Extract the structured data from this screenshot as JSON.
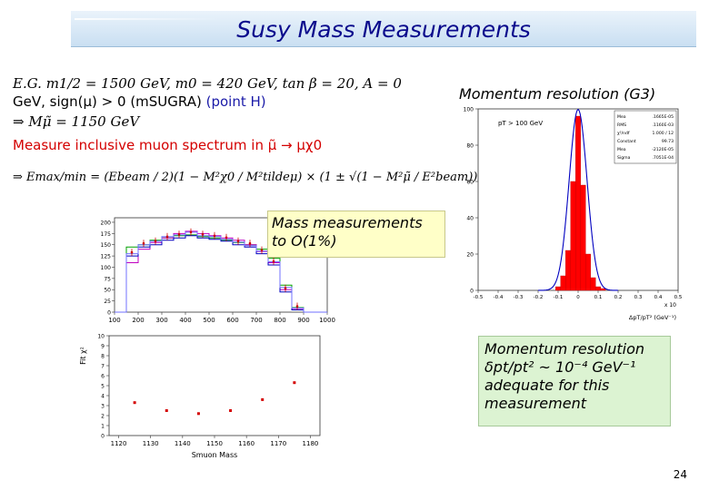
{
  "title": "Susy Mass Measurements",
  "physics_text": {
    "line1": "E.G. m1/2 = 1500 GeV, m0 = 420 GeV, tan β = 20, A = 0",
    "line2_a": "GeV, sign(μ) > 0 (mSUGRA) ",
    "line2_b": "(point H)",
    "line3": "⇒ Mμ̃ = 1150 GeV",
    "line4": "Measure inclusive muon spectrum in μ̃ → μχ0",
    "line5": "⇒ Emax/min = (Ebeam / 2)(1 − M²χ0 / M²tildeμ) × (1 ± √(1 − M²μ̃ / E²beam))"
  },
  "mass_box": {
    "line1": "Mass measurements",
    "line2": "to O(1%)"
  },
  "momentum_label": "Momentum resolution (G3)",
  "resolution_box": {
    "line1": "Momentum resolution",
    "line2": "δpt/pt² ~ 10⁻⁴ GeV⁻¹",
    "line3": "adequate for this",
    "line4": "measurement"
  },
  "page_number": "24",
  "chart_data": [
    {
      "type": "line",
      "name": "muon-spectrum",
      "x_ticks": [
        "100",
        "200",
        "300",
        "400",
        "500",
        "600",
        "700",
        "800",
        "900",
        "1000"
      ],
      "y_ticks": [
        "0",
        "25",
        "50",
        "75",
        "100",
        "125",
        "150",
        "175",
        "200"
      ],
      "xlim": [
        100,
        1000
      ],
      "ylim": [
        0,
        210
      ],
      "x": [
        100,
        150,
        200,
        250,
        300,
        350,
        400,
        450,
        500,
        550,
        600,
        650,
        700,
        750,
        800,
        850,
        900,
        950,
        1000
      ],
      "series": [
        {
          "color": "#00a000",
          "values": [
            0,
            145,
            150,
            160,
            165,
            170,
            172,
            168,
            165,
            160,
            155,
            150,
            140,
            120,
            60,
            10,
            0,
            0,
            0
          ]
        },
        {
          "color": "#c000c0",
          "values": [
            0,
            110,
            140,
            155,
            165,
            175,
            180,
            175,
            170,
            165,
            160,
            150,
            135,
            110,
            50,
            8,
            0,
            0,
            0
          ]
        },
        {
          "color": "#0000c0",
          "values": [
            0,
            125,
            145,
            150,
            160,
            165,
            170,
            165,
            162,
            158,
            150,
            145,
            130,
            105,
            45,
            5,
            0,
            0,
            0
          ]
        },
        {
          "color": "#7070ff",
          "values": [
            0,
            130,
            150,
            158,
            168,
            172,
            178,
            170,
            168,
            162,
            156,
            148,
            136,
            112,
            55,
            9,
            0,
            0,
            0
          ]
        }
      ]
    },
    {
      "type": "scatter",
      "name": "fit-chi2",
      "ylabel": "Fit χ²",
      "xlabel": "Smuon Mass",
      "x_ticks": [
        "1120",
        "1130",
        "1140",
        "1150",
        "1160",
        "1170",
        "1180"
      ],
      "y_ticks": [
        "0",
        "1",
        "2",
        "3",
        "4",
        "5",
        "6",
        "7",
        "8",
        "9",
        "10"
      ],
      "xlim": [
        1117,
        1183
      ],
      "ylim": [
        0,
        10
      ],
      "x": [
        1125,
        1135,
        1145,
        1155,
        1165,
        1175
      ],
      "y": [
        3.3,
        2.5,
        2.2,
        2.5,
        3.6,
        5.3
      ]
    },
    {
      "type": "bar",
      "name": "momentum-resolution-histogram",
      "y_ticks": [
        "0",
        "20",
        "40",
        "60",
        "80",
        "100"
      ],
      "x_ticks": [
        "-0.5",
        "-0.4",
        "-0.3",
        "-0.2",
        "-0.1",
        "0",
        "0.1",
        "0.2",
        "0.3",
        "0.4",
        "0.5"
      ],
      "xlim": [
        -0.5,
        0.5
      ],
      "ylim": [
        0,
        100
      ],
      "xlabel": "ΔpT/pT² (GeV⁻¹)",
      "x_multiplier": "x 10",
      "annotation": "pT > 100 GeV",
      "stats": [
        {
          "label": "Mea",
          "value": ".1665E-05"
        },
        {
          "label": "RMS",
          "value": ".1160E-03"
        },
        {
          "label": "χ²/ndf",
          "value": "1.000 / 12"
        },
        {
          "label": "Constant",
          "value": "99.73"
        },
        {
          "label": "Mea",
          "value": "-2120E-05"
        },
        {
          "label": "Sigma",
          "value": ".7051E-04"
        }
      ],
      "categories": [
        -0.1,
        -0.075,
        -0.05,
        -0.025,
        0,
        0.025,
        0.05,
        0.075,
        0.1,
        0.125
      ],
      "values": [
        2,
        8,
        22,
        60,
        96,
        58,
        20,
        7,
        2,
        1
      ]
    }
  ]
}
